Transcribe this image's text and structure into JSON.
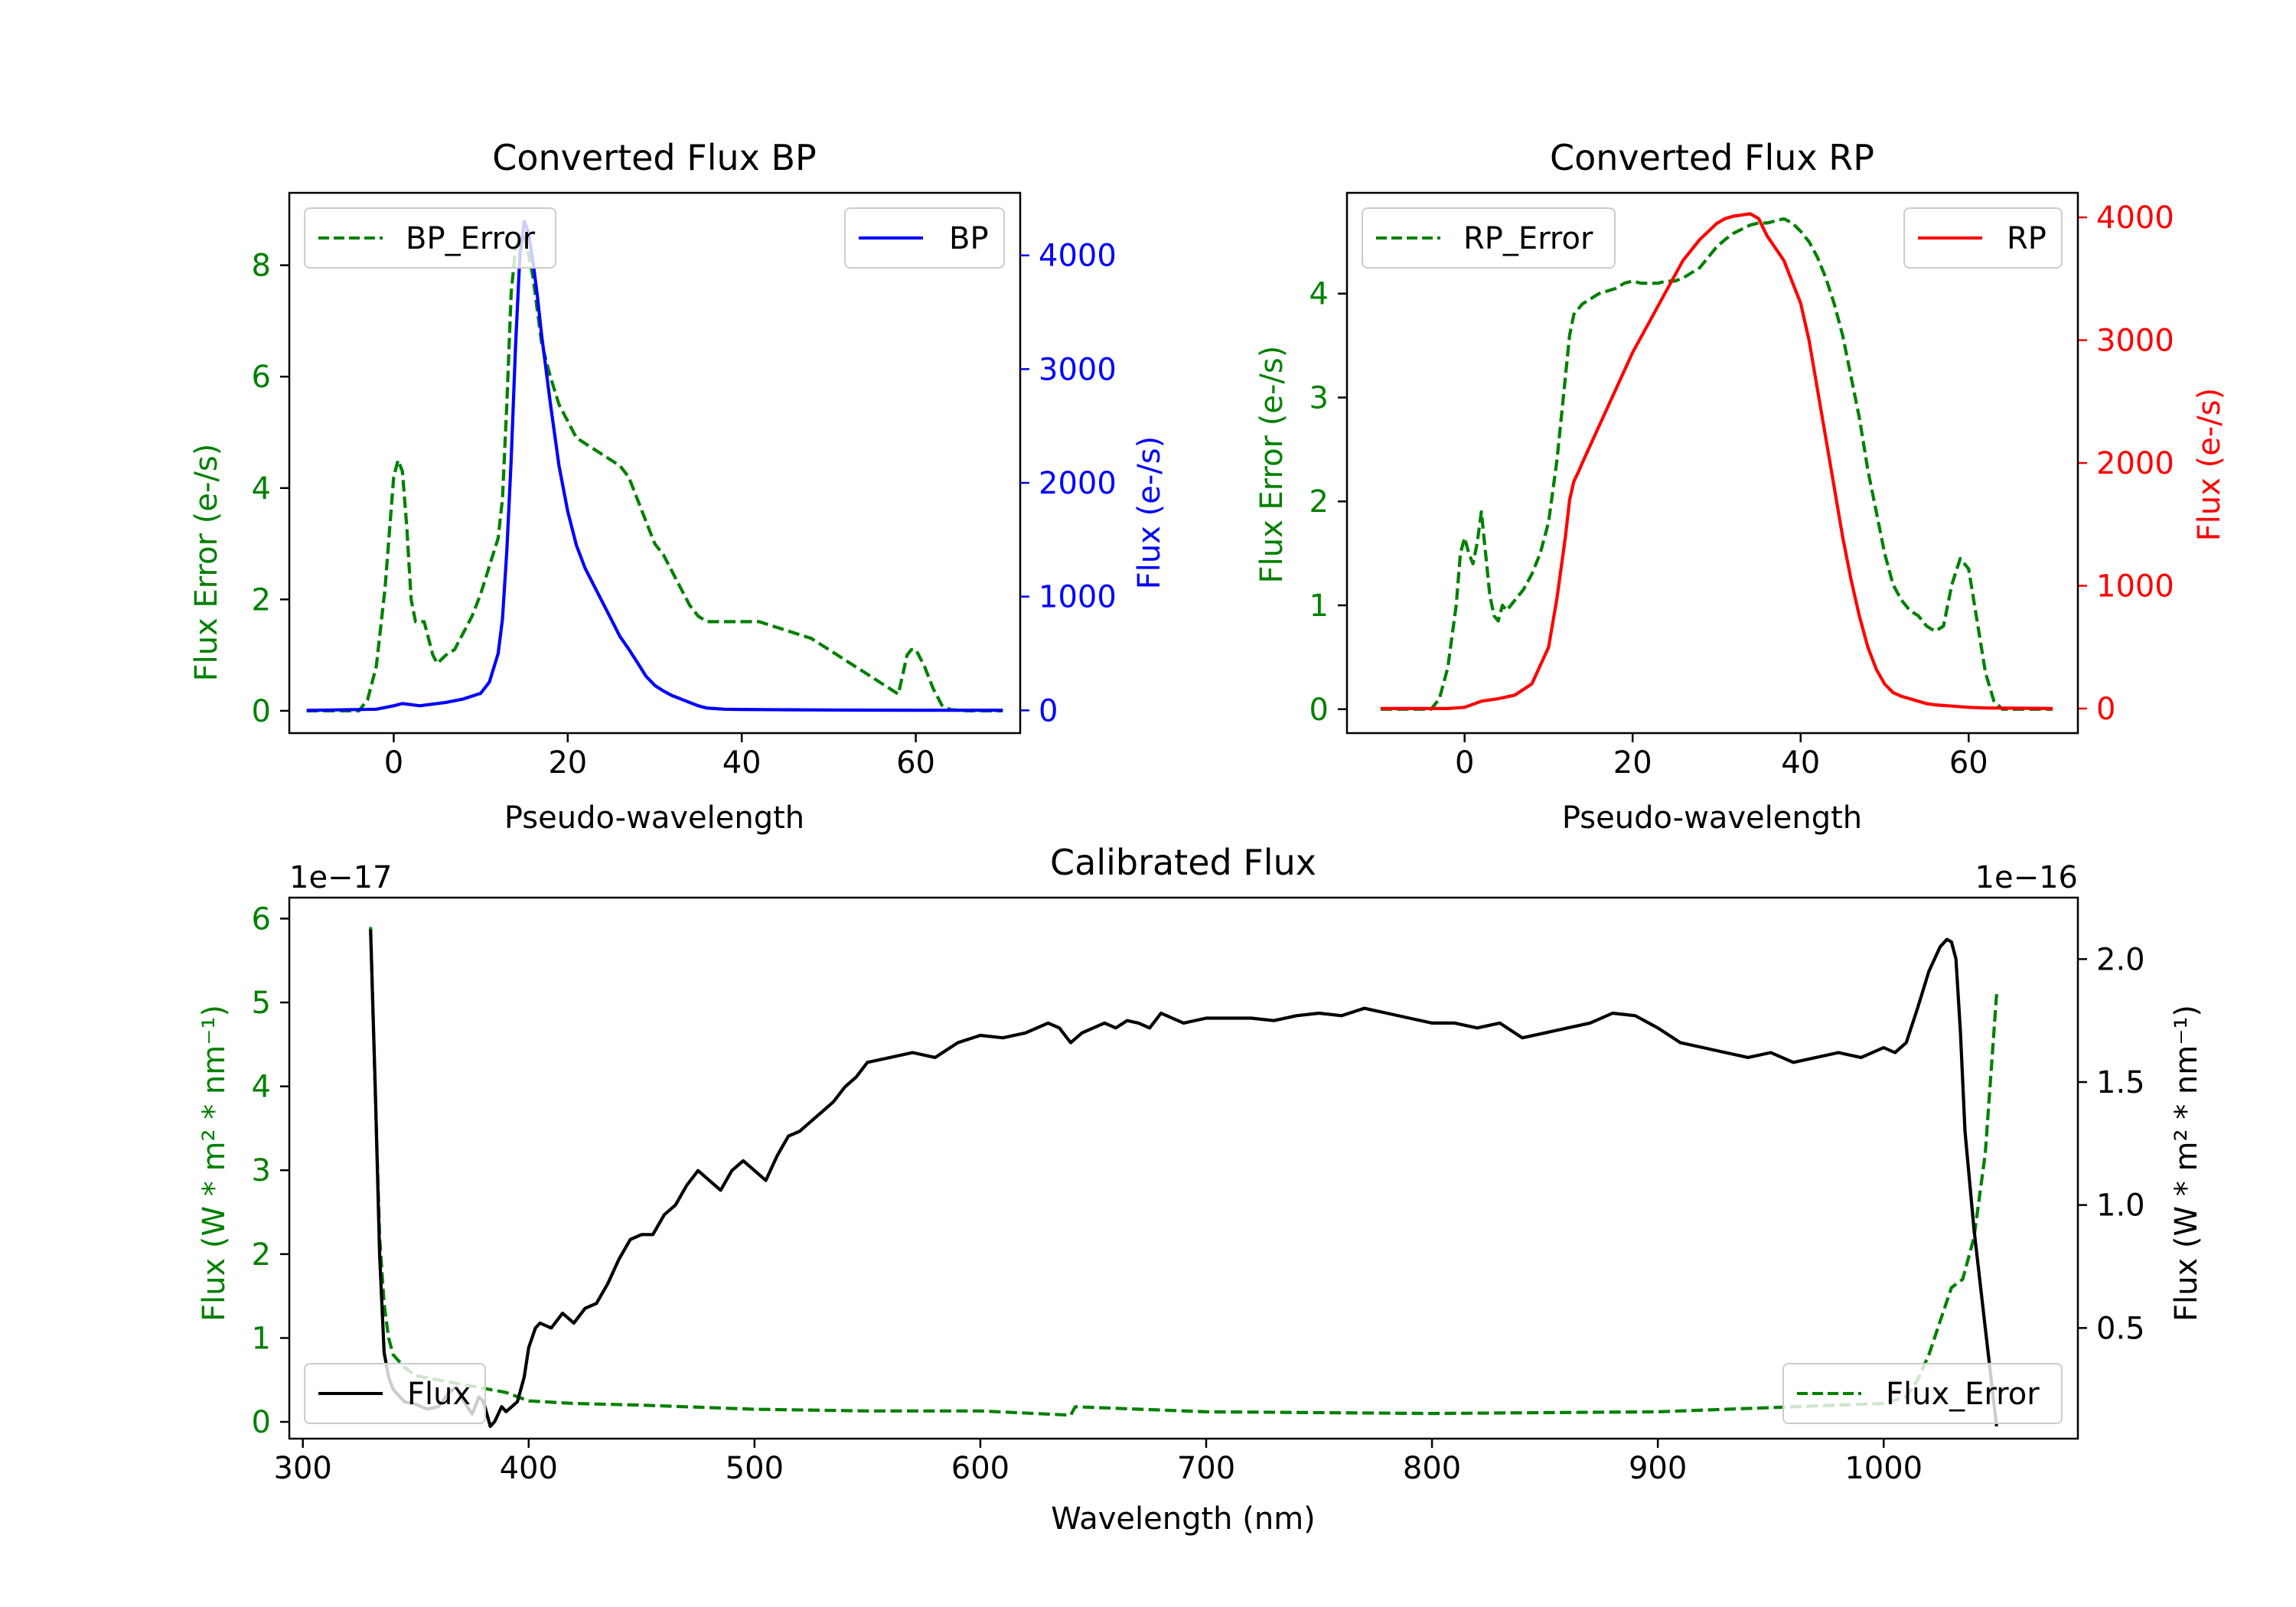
{
  "colors": {
    "green": "#008000",
    "blue": "#0000ff",
    "red": "#ff0000",
    "black": "#000000"
  },
  "chart_data": [
    {
      "id": "bp",
      "type": "line",
      "title": "Converted Flux BP",
      "xlabel": "Pseudo-wavelength",
      "ylabel_left": "Flux Error (e-/s)",
      "ylabel_right": "Flux (e-/s)",
      "xlim": [
        -12,
        72
      ],
      "ylim_left": [
        -0.4,
        9.3
      ],
      "ylim_right": [
        -200,
        4550
      ],
      "xticks": [
        0,
        20,
        40,
        60
      ],
      "yticks_left": [
        0,
        2,
        4,
        6,
        8
      ],
      "yticks_right": [
        0,
        1000,
        2000,
        3000,
        4000
      ],
      "legend_left": {
        "label": "BP_Error",
        "placement": "upper left"
      },
      "legend_right": {
        "label": "BP",
        "placement": "upper right"
      },
      "series": [
        {
          "name": "BP_Error",
          "axis": "left",
          "style": "dashed",
          "color": "#008000",
          "x": [
            -10,
            -4,
            -3,
            -2,
            -1,
            0,
            0.5,
            1,
            1.5,
            2,
            2.5,
            3,
            3.5,
            4,
            4.5,
            5,
            6,
            7,
            8,
            9,
            10,
            11,
            12,
            12.5,
            13,
            13.5,
            14,
            14.5,
            15,
            15.5,
            16,
            16.5,
            17,
            18,
            19,
            20,
            21,
            22,
            23,
            24,
            25,
            26,
            27,
            28,
            29,
            30,
            31,
            32,
            33,
            34,
            35,
            36,
            37,
            38,
            40,
            42,
            44,
            46,
            48,
            50,
            52,
            54,
            56,
            57,
            58,
            59,
            59.5,
            60,
            61,
            62,
            63,
            64,
            66,
            70
          ],
          "y": [
            0,
            0,
            0.2,
            0.8,
            2.2,
            4.2,
            4.5,
            4.3,
            3.3,
            2.0,
            1.6,
            1.6,
            1.6,
            1.3,
            1.0,
            0.85,
            1.0,
            1.1,
            1.4,
            1.7,
            2.1,
            2.6,
            3.1,
            3.8,
            5.5,
            7.5,
            8.3,
            8.5,
            8.5,
            8.2,
            7.8,
            7.2,
            6.6,
            6.0,
            5.5,
            5.2,
            4.9,
            4.8,
            4.7,
            4.6,
            4.5,
            4.4,
            4.2,
            3.8,
            3.4,
            3.0,
            2.8,
            2.5,
            2.2,
            1.9,
            1.7,
            1.6,
            1.6,
            1.6,
            1.6,
            1.6,
            1.5,
            1.4,
            1.3,
            1.1,
            0.9,
            0.7,
            0.5,
            0.4,
            0.3,
            1.0,
            1.1,
            1.1,
            0.8,
            0.4,
            0.1,
            0.02,
            0,
            0
          ]
        },
        {
          "name": "BP",
          "axis": "right",
          "style": "solid",
          "color": "#0000ff",
          "x": [
            -10,
            -2,
            0,
            1,
            2,
            3,
            4,
            6,
            8,
            10,
            11,
            12,
            12.5,
            13,
            13.5,
            14,
            14.5,
            15,
            15.5,
            16,
            16.5,
            17,
            18,
            19,
            20,
            21,
            22,
            23,
            24,
            25,
            26,
            27,
            28,
            29,
            30,
            31,
            32,
            33,
            34,
            35,
            36,
            37,
            38,
            40,
            45,
            50,
            55,
            60,
            70
          ],
          "y": [
            0,
            10,
            40,
            60,
            50,
            40,
            50,
            70,
            100,
            150,
            250,
            500,
            800,
            1400,
            2200,
            3200,
            4000,
            4300,
            4200,
            3950,
            3650,
            3300,
            2700,
            2150,
            1750,
            1450,
            1250,
            1100,
            950,
            800,
            650,
            540,
            420,
            300,
            220,
            170,
            130,
            100,
            70,
            40,
            20,
            15,
            10,
            8,
            5,
            3,
            2,
            1,
            1
          ]
        }
      ]
    },
    {
      "id": "rp",
      "type": "line",
      "title": "Converted Flux RP",
      "xlabel": "Pseudo-wavelength",
      "ylabel_left": "Flux Error (e-/s)",
      "ylabel_right": "Flux (e-/s)",
      "xlim": [
        -14,
        73
      ],
      "ylim_left": [
        -0.23,
        4.97
      ],
      "ylim_right": [
        -200,
        4200
      ],
      "xticks": [
        0,
        20,
        40,
        60
      ],
      "yticks_left": [
        0,
        1,
        2,
        3,
        4
      ],
      "yticks_right": [
        0,
        1000,
        2000,
        3000,
        4000
      ],
      "legend_left": {
        "label": "RP_Error",
        "placement": "upper left"
      },
      "legend_right": {
        "label": "RP",
        "placement": "upper right"
      },
      "series": [
        {
          "name": "RP_Error",
          "axis": "left",
          "style": "dashed",
          "color": "#008000",
          "x": [
            -10,
            -4,
            -3,
            -2,
            -1,
            -0.5,
            0,
            0.5,
            1,
            1.5,
            2,
            2.5,
            3,
            3.5,
            4,
            4.5,
            5,
            6,
            7,
            8,
            9,
            10,
            11,
            12,
            12.5,
            13,
            14,
            15,
            16,
            18,
            19,
            20,
            21,
            22,
            23,
            24,
            25,
            26,
            27,
            28,
            29,
            30,
            31,
            32,
            33,
            34,
            35,
            36,
            37,
            38,
            39,
            40,
            41,
            42,
            43,
            44,
            45,
            46,
            47,
            48,
            49,
            50,
            51,
            52,
            53,
            54,
            55,
            56,
            57,
            58,
            59,
            60,
            61,
            62,
            63,
            64,
            70
          ],
          "y": [
            0,
            0,
            0.1,
            0.4,
            1.0,
            1.5,
            1.65,
            1.5,
            1.4,
            1.6,
            1.9,
            1.5,
            1.1,
            0.9,
            0.85,
            1.0,
            0.95,
            1.05,
            1.15,
            1.3,
            1.5,
            1.8,
            2.4,
            3.2,
            3.6,
            3.8,
            3.9,
            3.95,
            4.0,
            4.05,
            4.1,
            4.12,
            4.1,
            4.1,
            4.1,
            4.12,
            4.12,
            4.15,
            4.2,
            4.25,
            4.35,
            4.45,
            4.52,
            4.58,
            4.62,
            4.66,
            4.68,
            4.68,
            4.7,
            4.72,
            4.68,
            4.6,
            4.5,
            4.35,
            4.15,
            3.9,
            3.6,
            3.2,
            2.8,
            2.3,
            1.9,
            1.5,
            1.2,
            1.05,
            0.95,
            0.9,
            0.8,
            0.75,
            0.8,
            1.2,
            1.45,
            1.35,
            0.85,
            0.35,
            0.08,
            0,
            0
          ]
        },
        {
          "name": "RP",
          "axis": "right",
          "style": "solid",
          "color": "#ff0000",
          "x": [
            -10,
            -2,
            0,
            2,
            4,
            6,
            8,
            10,
            11,
            12,
            12.5,
            13,
            13.5,
            14,
            16,
            18,
            20,
            22,
            24,
            26,
            28,
            30,
            31,
            32,
            33,
            34,
            35,
            36,
            38,
            40,
            41,
            42,
            43,
            44,
            45,
            46,
            47,
            48,
            49,
            50,
            51,
            52,
            53,
            54,
            55,
            56,
            58,
            60,
            62,
            70
          ],
          "y": [
            0,
            0,
            10,
            60,
            80,
            110,
            200,
            500,
            900,
            1400,
            1700,
            1850,
            1920,
            2000,
            2300,
            2600,
            2900,
            3150,
            3400,
            3650,
            3820,
            3950,
            3990,
            4010,
            4020,
            4030,
            3990,
            3850,
            3650,
            3300,
            3000,
            2600,
            2200,
            1800,
            1400,
            1050,
            750,
            500,
            320,
            200,
            130,
            100,
            80,
            60,
            40,
            30,
            20,
            10,
            5,
            0
          ]
        }
      ]
    },
    {
      "id": "calibrated",
      "type": "line",
      "title": "Calibrated Flux",
      "xlabel": "Wavelength (nm)",
      "ylabel_left": "Flux (W * m² * nm⁻¹)",
      "ylabel_right": "Flux (W * m² * nm⁻¹)",
      "offset_left": "1e−17",
      "offset_right": "1e−16",
      "xlim": [
        294,
        1086
      ],
      "ylim_left": [
        -0.2,
        6.25
      ],
      "ylim_right": [
        0.05,
        2.25
      ],
      "xticks": [
        300,
        400,
        500,
        600,
        700,
        800,
        900,
        1000
      ],
      "yticks_left": [
        0,
        1,
        2,
        3,
        4,
        5,
        6
      ],
      "yticks_right": [
        0.5,
        1.0,
        1.5,
        2.0
      ],
      "yticklabels_right": [
        "0.5",
        "1.0",
        "1.5",
        "2.0"
      ],
      "legend_left": {
        "label": "Flux",
        "placement": "lower left"
      },
      "legend_right": {
        "label": "Flux_Error",
        "placement": "lower right"
      },
      "series": [
        {
          "name": "Flux_Error",
          "axis": "left",
          "style": "dashed",
          "color": "#008000",
          "x": [
            330,
            332,
            334,
            336,
            338,
            340,
            345,
            350,
            360,
            370,
            380,
            390,
            400,
            420,
            450,
            500,
            550,
            600,
            640,
            642,
            700,
            800,
            900,
            1000,
            1010,
            1015,
            1020,
            1025,
            1030,
            1035,
            1040,
            1045,
            1050
          ],
          "y": [
            5.9,
            4.0,
            2.2,
            1.4,
            1.0,
            0.8,
            0.65,
            0.55,
            0.5,
            0.45,
            0.4,
            0.35,
            0.25,
            0.22,
            0.2,
            0.15,
            0.13,
            0.13,
            0.08,
            0.18,
            0.12,
            0.1,
            0.12,
            0.22,
            0.3,
            0.5,
            0.8,
            1.2,
            1.6,
            1.7,
            2.2,
            3.2,
            5.1
          ]
        },
        {
          "name": "Flux",
          "axis": "right",
          "style": "solid",
          "color": "#000000",
          "x": [
            330,
            332,
            334,
            336,
            338,
            340,
            345,
            350,
            355,
            360,
            365,
            368,
            370,
            375,
            378,
            380,
            383,
            385,
            388,
            390,
            395,
            398,
            400,
            403,
            405,
            410,
            415,
            420,
            425,
            430,
            435,
            440,
            445,
            450,
            455,
            460,
            465,
            470,
            475,
            480,
            485,
            490,
            495,
            500,
            505,
            510,
            515,
            520,
            525,
            530,
            535,
            540,
            545,
            550,
            560,
            570,
            580,
            590,
            600,
            610,
            620,
            630,
            635,
            640,
            645,
            650,
            655,
            660,
            665,
            670,
            675,
            680,
            685,
            690,
            700,
            710,
            720,
            730,
            740,
            750,
            760,
            770,
            775,
            780,
            790,
            800,
            810,
            820,
            830,
            840,
            850,
            860,
            870,
            880,
            890,
            900,
            910,
            920,
            930,
            940,
            950,
            960,
            970,
            980,
            990,
            1000,
            1005,
            1010,
            1015,
            1020,
            1025,
            1028,
            1030,
            1032,
            1034,
            1036,
            1040,
            1045,
            1050
          ],
          "y": [
            2.12,
            1.5,
            0.8,
            0.4,
            0.3,
            0.25,
            0.2,
            0.19,
            0.17,
            0.18,
            0.24,
            0.26,
            0.22,
            0.15,
            0.22,
            0.2,
            0.1,
            0.12,
            0.18,
            0.16,
            0.2,
            0.3,
            0.42,
            0.5,
            0.52,
            0.5,
            0.56,
            0.52,
            0.58,
            0.6,
            0.68,
            0.78,
            0.86,
            0.88,
            0.88,
            0.96,
            1.0,
            1.08,
            1.14,
            1.1,
            1.06,
            1.14,
            1.18,
            1.14,
            1.1,
            1.2,
            1.28,
            1.3,
            1.34,
            1.38,
            1.42,
            1.48,
            1.52,
            1.58,
            1.6,
            1.62,
            1.6,
            1.66,
            1.69,
            1.68,
            1.7,
            1.74,
            1.72,
            1.66,
            1.7,
            1.72,
            1.74,
            1.72,
            1.75,
            1.74,
            1.72,
            1.78,
            1.76,
            1.74,
            1.76,
            1.76,
            1.76,
            1.75,
            1.77,
            1.78,
            1.77,
            1.8,
            1.79,
            1.78,
            1.76,
            1.74,
            1.74,
            1.72,
            1.74,
            1.68,
            1.7,
            1.72,
            1.74,
            1.78,
            1.77,
            1.72,
            1.66,
            1.64,
            1.62,
            1.6,
            1.62,
            1.58,
            1.6,
            1.62,
            1.6,
            1.64,
            1.62,
            1.66,
            1.8,
            1.95,
            2.05,
            2.08,
            2.07,
            2.0,
            1.7,
            1.3,
            0.9,
            0.5,
            0.1
          ]
        }
      ]
    }
  ]
}
